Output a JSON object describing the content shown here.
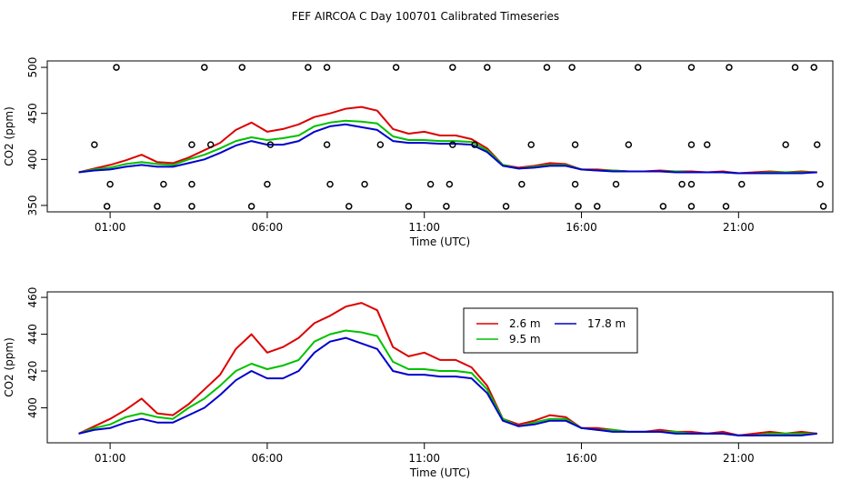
{
  "title": "FEF AIRCOA C  Day 100701  Calibrated Timeseries",
  "colors": {
    "h2_6": "#dd0000",
    "h9_5": "#00c000",
    "h17_8": "#0000cc",
    "axis": "#000000"
  },
  "chart_data": [
    {
      "type": "line",
      "name": "top-panel",
      "xlabel": "Time (UTC)",
      "ylabel": "CO2 (ppm)",
      "xlim": [
        -1.0,
        24.0
      ],
      "ylim": [
        343,
        507
      ],
      "xticks": [
        1,
        6,
        11,
        16,
        21
      ],
      "xtick_labels": [
        "01:00",
        "06:00",
        "11:00",
        "16:00",
        "21:00"
      ],
      "yticks": [
        350,
        400,
        450,
        500
      ],
      "ytick_labels": [
        "350",
        "400",
        "450",
        "500"
      ],
      "series": [
        {
          "name": "2.6 m",
          "color": "#dd0000",
          "x": [
            0,
            0.5,
            1,
            1.5,
            2,
            2.5,
            3,
            3.5,
            4,
            4.5,
            5,
            5.5,
            6,
            6.5,
            7,
            7.5,
            8,
            8.5,
            9,
            9.5,
            10,
            10.5,
            11,
            11.5,
            12,
            12.5,
            13,
            13.5,
            14,
            14.5,
            15,
            15.5,
            16,
            16.5,
            17,
            17.5,
            18,
            18.5,
            19,
            19.5,
            20,
            20.5,
            21,
            21.5,
            22,
            22.5,
            23,
            23.5
          ],
          "y": [
            386,
            390,
            394,
            399,
            405,
            397,
            396,
            402,
            410,
            418,
            432,
            440,
            430,
            433,
            438,
            446,
            450,
            455,
            457,
            453,
            433,
            428,
            430,
            426,
            426,
            422,
            412,
            394,
            391,
            393,
            396,
            395,
            389,
            389,
            388,
            387,
            387,
            388,
            387,
            387,
            386,
            387,
            385,
            386,
            387,
            386,
            387,
            386
          ]
        },
        {
          "name": "9.5 m",
          "color": "#00c000",
          "x": [
            0,
            0.5,
            1,
            1.5,
            2,
            2.5,
            3,
            3.5,
            4,
            4.5,
            5,
            5.5,
            6,
            6.5,
            7,
            7.5,
            8,
            8.5,
            9,
            9.5,
            10,
            10.5,
            11,
            11.5,
            12,
            12.5,
            13,
            13.5,
            14,
            14.5,
            15,
            15.5,
            16,
            16.5,
            17,
            17.5,
            18,
            18.5,
            19,
            19.5,
            20,
            20.5,
            21,
            21.5,
            22,
            22.5,
            23,
            23.5
          ],
          "y": [
            386,
            389,
            391,
            395,
            397,
            395,
            394,
            400,
            405,
            412,
            420,
            424,
            421,
            423,
            426,
            436,
            440,
            442,
            441,
            439,
            425,
            421,
            421,
            420,
            420,
            419,
            410,
            394,
            390,
            392,
            394,
            394,
            389,
            388,
            388,
            387,
            387,
            387,
            387,
            386,
            386,
            386,
            385,
            385,
            386,
            386,
            386,
            386
          ]
        },
        {
          "name": "17.8 m",
          "color": "#0000cc",
          "x": [
            0,
            0.5,
            1,
            1.5,
            2,
            2.5,
            3,
            3.5,
            4,
            4.5,
            5,
            5.5,
            6,
            6.5,
            7,
            7.5,
            8,
            8.5,
            9,
            9.5,
            10,
            10.5,
            11,
            11.5,
            12,
            12.5,
            13,
            13.5,
            14,
            14.5,
            15,
            15.5,
            16,
            16.5,
            17,
            17.5,
            18,
            18.5,
            19,
            19.5,
            20,
            20.5,
            21,
            21.5,
            22,
            22.5,
            23,
            23.5
          ],
          "y": [
            386,
            388,
            389,
            392,
            394,
            392,
            392,
            396,
            400,
            407,
            415,
            420,
            416,
            416,
            420,
            430,
            436,
            438,
            435,
            432,
            420,
            418,
            418,
            417,
            417,
            416,
            408,
            393,
            390,
            391,
            393,
            393,
            389,
            388,
            387,
            387,
            387,
            387,
            386,
            386,
            386,
            386,
            385,
            385,
            385,
            385,
            385,
            386
          ]
        }
      ],
      "flag_points": [
        {
          "x": 1.2,
          "y": 500
        },
        {
          "x": 4.0,
          "y": 500
        },
        {
          "x": 5.2,
          "y": 500
        },
        {
          "x": 7.3,
          "y": 500
        },
        {
          "x": 7.9,
          "y": 500
        },
        {
          "x": 10.1,
          "y": 500
        },
        {
          "x": 11.9,
          "y": 500
        },
        {
          "x": 13.0,
          "y": 500
        },
        {
          "x": 14.9,
          "y": 500
        },
        {
          "x": 15.7,
          "y": 500
        },
        {
          "x": 17.8,
          "y": 500
        },
        {
          "x": 19.5,
          "y": 500
        },
        {
          "x": 20.7,
          "y": 500
        },
        {
          "x": 22.8,
          "y": 500
        },
        {
          "x": 23.4,
          "y": 500
        },
        {
          "x": 0.5,
          "y": 416
        },
        {
          "x": 3.6,
          "y": 416
        },
        {
          "x": 4.2,
          "y": 416
        },
        {
          "x": 6.1,
          "y": 416
        },
        {
          "x": 7.9,
          "y": 416
        },
        {
          "x": 9.6,
          "y": 416
        },
        {
          "x": 11.9,
          "y": 416
        },
        {
          "x": 12.6,
          "y": 416
        },
        {
          "x": 14.4,
          "y": 416
        },
        {
          "x": 15.8,
          "y": 416
        },
        {
          "x": 17.5,
          "y": 416
        },
        {
          "x": 19.5,
          "y": 416
        },
        {
          "x": 20.0,
          "y": 416
        },
        {
          "x": 22.5,
          "y": 416
        },
        {
          "x": 23.5,
          "y": 416
        },
        {
          "x": 1.0,
          "y": 373
        },
        {
          "x": 2.7,
          "y": 373
        },
        {
          "x": 3.6,
          "y": 373
        },
        {
          "x": 6.0,
          "y": 373
        },
        {
          "x": 8.0,
          "y": 373
        },
        {
          "x": 9.1,
          "y": 373
        },
        {
          "x": 11.2,
          "y": 373
        },
        {
          "x": 11.8,
          "y": 373
        },
        {
          "x": 14.1,
          "y": 373
        },
        {
          "x": 15.8,
          "y": 373
        },
        {
          "x": 17.1,
          "y": 373
        },
        {
          "x": 19.2,
          "y": 373
        },
        {
          "x": 19.5,
          "y": 373
        },
        {
          "x": 21.1,
          "y": 373
        },
        {
          "x": 23.6,
          "y": 373
        },
        {
          "x": 0.9,
          "y": 349
        },
        {
          "x": 2.5,
          "y": 349
        },
        {
          "x": 3.6,
          "y": 349
        },
        {
          "x": 5.5,
          "y": 349
        },
        {
          "x": 8.6,
          "y": 349
        },
        {
          "x": 10.5,
          "y": 349
        },
        {
          "x": 11.7,
          "y": 349
        },
        {
          "x": 13.6,
          "y": 349
        },
        {
          "x": 15.9,
          "y": 349
        },
        {
          "x": 16.5,
          "y": 349
        },
        {
          "x": 18.6,
          "y": 349
        },
        {
          "x": 19.5,
          "y": 349
        },
        {
          "x": 20.6,
          "y": 349
        },
        {
          "x": 23.7,
          "y": 349
        }
      ]
    },
    {
      "type": "line",
      "name": "bottom-panel",
      "xlabel": "Time (UTC)",
      "ylabel": "CO2 (ppm)",
      "xlim": [
        -1.0,
        24.0
      ],
      "ylim": [
        381,
        463
      ],
      "xticks": [
        1,
        6,
        11,
        16,
        21
      ],
      "xtick_labels": [
        "01:00",
        "06:00",
        "11:00",
        "16:00",
        "21:00"
      ],
      "yticks": [
        400,
        420,
        440,
        460
      ],
      "ytick_labels": [
        "400",
        "420",
        "440",
        "460"
      ],
      "series": [
        {
          "name": "2.6 m",
          "color": "#dd0000",
          "x": [
            0,
            0.5,
            1,
            1.5,
            2,
            2.5,
            3,
            3.5,
            4,
            4.5,
            5,
            5.5,
            6,
            6.5,
            7,
            7.5,
            8,
            8.5,
            9,
            9.5,
            10,
            10.5,
            11,
            11.5,
            12,
            12.5,
            13,
            13.5,
            14,
            14.5,
            15,
            15.5,
            16,
            16.5,
            17,
            17.5,
            18,
            18.5,
            19,
            19.5,
            20,
            20.5,
            21,
            21.5,
            22,
            22.5,
            23,
            23.5
          ],
          "y": [
            386,
            390,
            394,
            399,
            405,
            397,
            396,
            402,
            410,
            418,
            432,
            440,
            430,
            433,
            438,
            446,
            450,
            455,
            457,
            453,
            433,
            428,
            430,
            426,
            426,
            422,
            412,
            394,
            391,
            393,
            396,
            395,
            389,
            389,
            388,
            387,
            387,
            388,
            387,
            387,
            386,
            387,
            385,
            386,
            387,
            386,
            387,
            386
          ]
        },
        {
          "name": "9.5 m",
          "color": "#00c000",
          "x": [
            0,
            0.5,
            1,
            1.5,
            2,
            2.5,
            3,
            3.5,
            4,
            4.5,
            5,
            5.5,
            6,
            6.5,
            7,
            7.5,
            8,
            8.5,
            9,
            9.5,
            10,
            10.5,
            11,
            11.5,
            12,
            12.5,
            13,
            13.5,
            14,
            14.5,
            15,
            15.5,
            16,
            16.5,
            17,
            17.5,
            18,
            18.5,
            19,
            19.5,
            20,
            20.5,
            21,
            21.5,
            22,
            22.5,
            23,
            23.5
          ],
          "y": [
            386,
            389,
            391,
            395,
            397,
            395,
            394,
            400,
            405,
            412,
            420,
            424,
            421,
            423,
            426,
            436,
            440,
            442,
            441,
            439,
            425,
            421,
            421,
            420,
            420,
            419,
            410,
            394,
            390,
            392,
            394,
            394,
            389,
            388,
            388,
            387,
            387,
            387,
            387,
            386,
            386,
            386,
            385,
            385,
            386,
            386,
            386,
            386
          ]
        },
        {
          "name": "17.8 m",
          "color": "#0000cc",
          "x": [
            0,
            0.5,
            1,
            1.5,
            2,
            2.5,
            3,
            3.5,
            4,
            4.5,
            5,
            5.5,
            6,
            6.5,
            7,
            7.5,
            8,
            8.5,
            9,
            9.5,
            10,
            10.5,
            11,
            11.5,
            12,
            12.5,
            13,
            13.5,
            14,
            14.5,
            15,
            15.5,
            16,
            16.5,
            17,
            17.5,
            18,
            18.5,
            19,
            19.5,
            20,
            20.5,
            21,
            21.5,
            22,
            22.5,
            23,
            23.5
          ],
          "y": [
            386,
            388,
            389,
            392,
            394,
            392,
            392,
            396,
            400,
            407,
            415,
            420,
            416,
            416,
            420,
            430,
            436,
            438,
            435,
            432,
            420,
            418,
            418,
            417,
            417,
            416,
            408,
            393,
            390,
            391,
            393,
            393,
            389,
            388,
            387,
            387,
            387,
            387,
            386,
            386,
            386,
            386,
            385,
            385,
            385,
            385,
            385,
            386
          ]
        }
      ],
      "legend": [
        {
          "label": "2.6 m",
          "color": "#dd0000"
        },
        {
          "label": "17.8 m",
          "color": "#0000cc"
        },
        {
          "label": "9.5 m",
          "color": "#00c000"
        }
      ]
    }
  ]
}
